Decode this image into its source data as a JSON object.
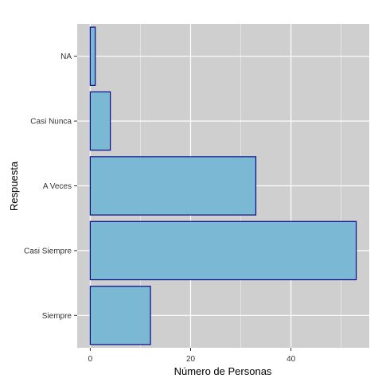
{
  "chart_data": {
    "type": "bar",
    "orientation": "horizontal",
    "categories": [
      "Siempre",
      "Casi Siempre",
      "A Veces",
      "Casi Nunca",
      "NA"
    ],
    "values": [
      12,
      53,
      33,
      4,
      1
    ],
    "xlabel": "Número de Personas",
    "ylabel": "Respuesta",
    "xlim": [
      -2.6,
      55.6
    ],
    "x_ticks": [
      0,
      20,
      40
    ],
    "x_minor_ticks": [
      10,
      30,
      50
    ],
    "grid": true,
    "legend": "none",
    "colors": {
      "bar_fill": "#7ab8d4",
      "bar_stroke": "#0a0a8a",
      "panel_bg": "#cfcfcf",
      "grid": "#ffffff"
    }
  }
}
